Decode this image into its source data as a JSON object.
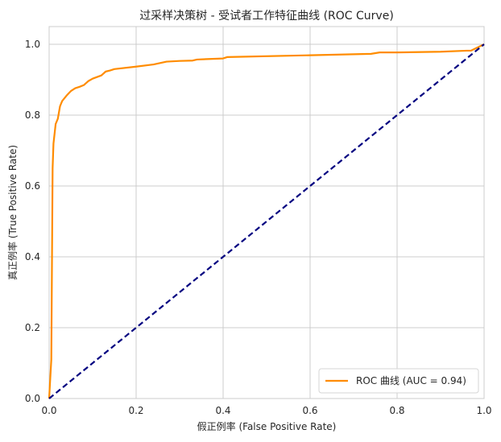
{
  "chart_data": {
    "type": "line",
    "title": "过采样决策树 - 受试者工作特征曲线 (ROC Curve)",
    "xlabel": "假正例率 (False Positive Rate)",
    "ylabel": "真正例率 (True Positive Rate)",
    "xlim": [
      0.0,
      1.0
    ],
    "ylim": [
      0.0,
      1.05
    ],
    "x_ticks": [
      "0.0",
      "0.2",
      "0.4",
      "0.6",
      "0.8",
      "1.0"
    ],
    "y_ticks": [
      "0.0",
      "0.2",
      "0.4",
      "0.6",
      "0.8",
      "1.0"
    ],
    "grid": true,
    "legend_position": "lower-right",
    "series": [
      {
        "name": "ROC 曲线 (AUC = 0.94)",
        "color": "#ff8c00",
        "style": "solid",
        "x": [
          0.0,
          0.005,
          0.008,
          0.01,
          0.015,
          0.02,
          0.025,
          0.03,
          0.04,
          0.05,
          0.06,
          0.07,
          0.08,
          0.09,
          0.1,
          0.12,
          0.13,
          0.14,
          0.15,
          0.2,
          0.24,
          0.27,
          0.3,
          0.33,
          0.34,
          0.4,
          0.41,
          0.6,
          0.74,
          0.76,
          0.8,
          0.9,
          0.96,
          0.97,
          1.0
        ],
        "y": [
          0.0,
          0.11,
          0.65,
          0.72,
          0.775,
          0.79,
          0.825,
          0.84,
          0.855,
          0.868,
          0.876,
          0.88,
          0.885,
          0.896,
          0.903,
          0.912,
          0.923,
          0.926,
          0.93,
          0.937,
          0.943,
          0.951,
          0.953,
          0.954,
          0.957,
          0.96,
          0.964,
          0.969,
          0.973,
          0.977,
          0.977,
          0.979,
          0.982,
          0.982,
          1.0
        ]
      },
      {
        "name": "",
        "color": "#000080",
        "style": "dashed",
        "x": [
          0.0,
          1.0
        ],
        "y": [
          0.0,
          1.0
        ]
      }
    ]
  }
}
